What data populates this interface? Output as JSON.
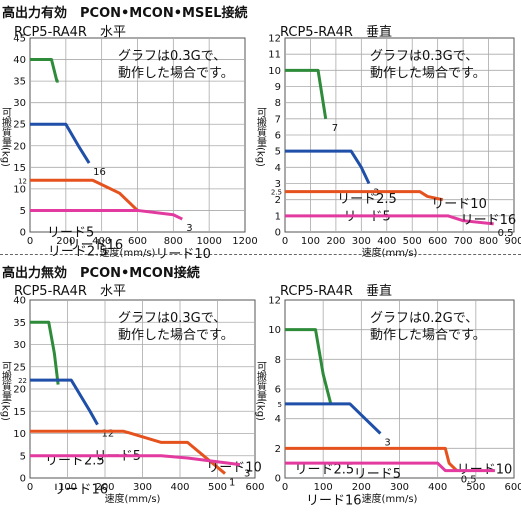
{
  "headers": {
    "top": "高出力有効　PCON•MCON•MSEL接続",
    "bottom": "高出力無効　PCON•MCON接続"
  },
  "chart_data": [
    {
      "type": "line",
      "title": "RCP5-RA4R　水平",
      "note": "グラフは0.3Gで、\n動作した場合です。",
      "xlabel": "速度(mm/s)",
      "ylabel": "可搬質量(kg)",
      "xlim": [
        0,
        1200
      ],
      "ylim": [
        0,
        45
      ],
      "xticks": [
        0,
        200,
        400,
        600,
        800,
        1000,
        1200
      ],
      "yticks": [
        0,
        5,
        10,
        15,
        20,
        25,
        30,
        35,
        40,
        45
      ],
      "extra_yticks": [
        12
      ],
      "series": [
        {
          "name": "リード2.5",
          "color": "#2e8b3a",
          "x": [
            0,
            120,
            150,
            160
          ],
          "y": [
            40,
            40,
            35,
            35
          ]
        },
        {
          "name": "リード5",
          "color": "#1f4fa8",
          "x": [
            0,
            200,
            270,
            330
          ],
          "y": [
            25,
            25,
            20,
            16
          ],
          "end_label": "16"
        },
        {
          "name": "リード10",
          "color": "#e5521e",
          "x": [
            0,
            350,
            500,
            600
          ],
          "y": [
            12,
            12,
            9,
            5
          ]
        },
        {
          "name": "リード16",
          "color": "#e23a9f",
          "x": [
            0,
            600,
            800,
            850
          ],
          "y": [
            5,
            5,
            4,
            3
          ],
          "end_label": "3"
        }
      ]
    },
    {
      "type": "line",
      "title": "RCP5-RA4R　垂直",
      "note": "グラフは0.3Gで、\n動作した場合です。",
      "xlabel": "速度(mm/s)",
      "ylabel": "可搬質量(kg)",
      "xlim": [
        0,
        900
      ],
      "ylim": [
        0,
        12
      ],
      "xticks": [
        0,
        100,
        200,
        300,
        400,
        500,
        600,
        700,
        800,
        900
      ],
      "yticks": [
        0,
        1,
        2,
        3,
        4,
        5,
        6,
        7,
        8,
        9,
        10,
        11,
        12
      ],
      "extra_yticks": [
        2.5
      ],
      "series": [
        {
          "name": "リード2.5",
          "color": "#2e8b3a",
          "x": [
            0,
            130,
            140,
            160
          ],
          "y": [
            10,
            10,
            9,
            7
          ],
          "end_label": "7"
        },
        {
          "name": "リード5",
          "color": "#1f4fa8",
          "x": [
            0,
            260,
            300,
            330
          ],
          "y": [
            5,
            5,
            4,
            3
          ],
          "end_label": "3"
        },
        {
          "name": "リード10",
          "color": "#e5521e",
          "x": [
            0,
            530,
            560,
            620
          ],
          "y": [
            2.5,
            2.5,
            2.2,
            2
          ]
        },
        {
          "name": "リード16",
          "color": "#e23a9f",
          "x": [
            0,
            640,
            700,
            820
          ],
          "y": [
            1,
            1,
            0.7,
            0.5
          ],
          "end_label": "0.5"
        }
      ]
    },
    {
      "type": "line",
      "title": "RCP5-RA4R　水平",
      "note": "グラフは0.3Gで、\n動作した場合です。",
      "xlabel": "速度(mm/s)",
      "ylabel": "可搬質量(kg)",
      "xlim": [
        0,
        600
      ],
      "ylim": [
        0,
        40
      ],
      "xticks": [
        0,
        100,
        200,
        300,
        400,
        500,
        600
      ],
      "yticks": [
        0,
        5,
        10,
        15,
        20,
        25,
        30,
        35,
        40
      ],
      "extra_yticks": [
        22
      ],
      "series": [
        {
          "name": "リード2.5",
          "color": "#2e8b3a",
          "x": [
            0,
            50,
            65,
            75
          ],
          "y": [
            35,
            35,
            28,
            21
          ]
        },
        {
          "name": "リード5",
          "color": "#1f4fa8",
          "x": [
            0,
            110,
            160,
            180
          ],
          "y": [
            22,
            22,
            15,
            12
          ],
          "end_label": "12"
        },
        {
          "name": "リード10",
          "color": "#e5521e",
          "x": [
            0,
            250,
            350,
            420,
            520
          ],
          "y": [
            10.5,
            10.5,
            8,
            8,
            1
          ],
          "end_label": "1"
        },
        {
          "name": "リード16",
          "color": "#e23a9f",
          "x": [
            0,
            350,
            420,
            560
          ],
          "y": [
            5,
            5,
            4.5,
            3
          ],
          "end_label": "3"
        }
      ]
    },
    {
      "type": "line",
      "title": "RCP5-RA4R　垂直",
      "note": "グラフは0.2Gで、\n動作した場合です。",
      "xlabel": "速度(mm/s)",
      "ylabel": "可搬質量(kg)",
      "xlim": [
        0,
        600
      ],
      "ylim": [
        0,
        12
      ],
      "xticks": [
        0,
        100,
        200,
        300,
        400,
        500,
        600
      ],
      "yticks": [
        0,
        2,
        4,
        6,
        8,
        10,
        12
      ],
      "extra_yticks": [
        5
      ],
      "series": [
        {
          "name": "リード2.5",
          "color": "#2e8b3a",
          "x": [
            0,
            80,
            100,
            120
          ],
          "y": [
            10,
            10,
            7,
            5
          ]
        },
        {
          "name": "リード5",
          "color": "#1f4fa8",
          "x": [
            0,
            170,
            210,
            250
          ],
          "y": [
            5,
            5,
            4,
            3
          ],
          "end_label": "3"
        },
        {
          "name": "リード10",
          "color": "#e5521e",
          "x": [
            0,
            420,
            430,
            450
          ],
          "y": [
            2,
            2,
            1,
            0.5
          ],
          "end_label": "0.5"
        },
        {
          "name": "リード16",
          "color": "#e23a9f",
          "x": [
            0,
            400,
            420,
            550
          ],
          "y": [
            1,
            1,
            0.5,
            0.5
          ]
        }
      ]
    }
  ]
}
